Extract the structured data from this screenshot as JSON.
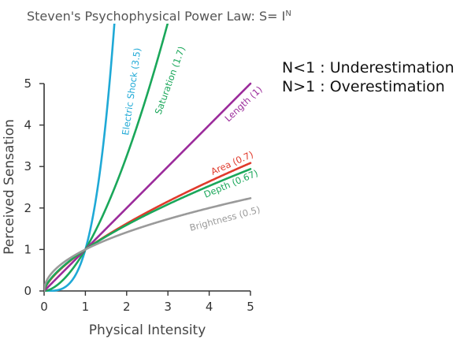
{
  "chart_data": {
    "type": "line",
    "title": "Steven's Psychophysical Power Law: S= I",
    "title_exponent": "N",
    "xlabel": "Physical Intensity",
    "ylabel": "Perceived Sensation",
    "xlim": [
      0,
      5
    ],
    "ylim": [
      0,
      5
    ],
    "xticks": [
      0,
      1,
      2,
      3,
      4,
      5
    ],
    "yticks": [
      0,
      1,
      2,
      3,
      4,
      5
    ],
    "grid": false,
    "legend": "inline labels on curves",
    "series": [
      {
        "name": "Electric Shock (3.5)",
        "exponent": 3.5,
        "color": "#1fa9d6"
      },
      {
        "name": "Saturation (1.7)",
        "exponent": 1.7,
        "color": "#1aa75a"
      },
      {
        "name": "Length (1)",
        "exponent": 1.0,
        "color": "#9b2b9b"
      },
      {
        "name": "Area (0.7)",
        "exponent": 0.7,
        "color": "#e03a2c"
      },
      {
        "name": "Depth (0.67)",
        "exponent": 0.67,
        "color": "#1aa75a"
      },
      {
        "name": "Brightness (0.5)",
        "exponent": 0.5,
        "color": "#9a9a9a"
      }
    ]
  },
  "notes": {
    "line1": "N<1 : Underestimation",
    "line2": "N>1 : Overestimation"
  }
}
